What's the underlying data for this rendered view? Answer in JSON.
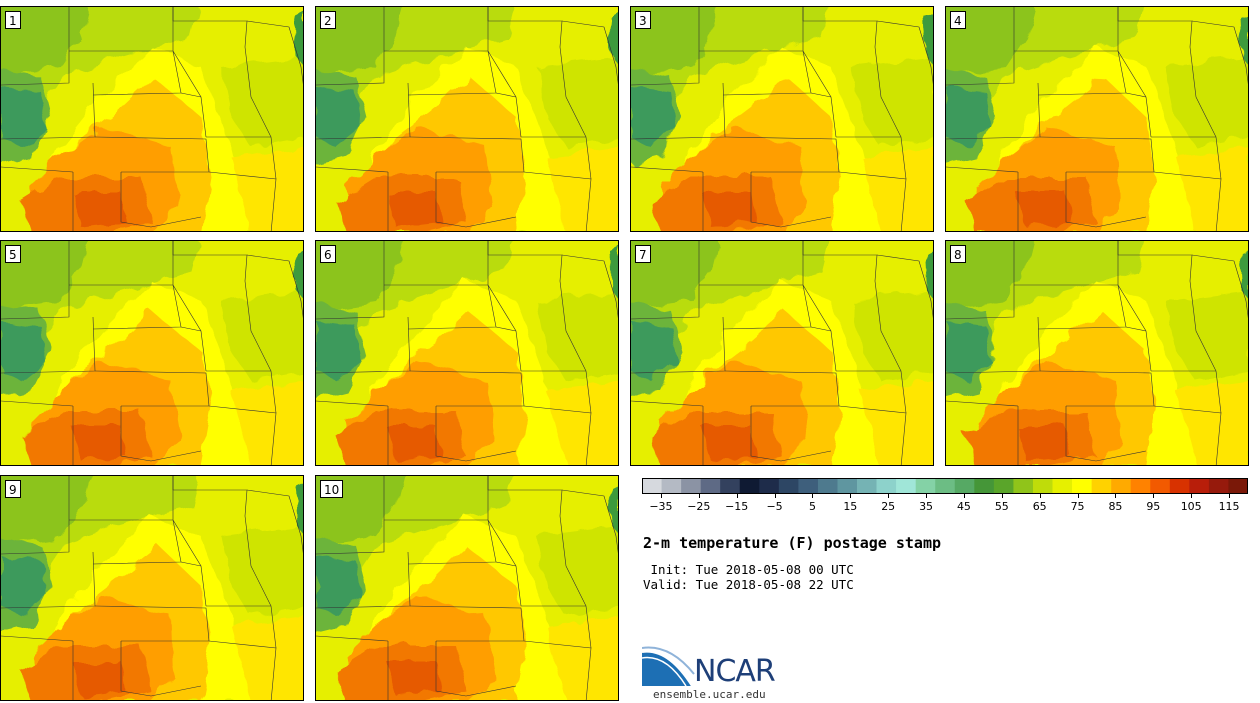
{
  "panels": [
    {
      "label": "1"
    },
    {
      "label": "2"
    },
    {
      "label": "3"
    },
    {
      "label": "4"
    },
    {
      "label": "5"
    },
    {
      "label": "6"
    },
    {
      "label": "7"
    },
    {
      "label": "8"
    },
    {
      "label": "9"
    },
    {
      "label": "10"
    }
  ],
  "colorbar": {
    "colors": [
      "#d6d9de",
      "#b4bac4",
      "#8b93a4",
      "#5e6a85",
      "#33415e",
      "#0f1a33",
      "#1e2c4a",
      "#2d4664",
      "#3e5f7c",
      "#4e7a8e",
      "#5f96a0",
      "#75b3b4",
      "#8dd2cb",
      "#a0e6d8",
      "#84d2a6",
      "#6cbd84",
      "#56a964",
      "#459638",
      "#5aa52a",
      "#90c41a",
      "#bfdc0a",
      "#e6f000",
      "#ffff00",
      "#ffd200",
      "#ffaa00",
      "#ff8200",
      "#f25a00",
      "#d83200",
      "#b81e0a",
      "#961a0c",
      "#7a1808"
    ],
    "tick_values": [
      "−35",
      "−25",
      "−15",
      "−5",
      "5",
      "15",
      "25",
      "35",
      "45",
      "55",
      "65",
      "75",
      "85",
      "95",
      "105",
      "115"
    ],
    "min": -40,
    "max": 120
  },
  "title": "2-m temperature (F) postage stamp",
  "init_text": " Init: Tue 2018-05-08 00 UTC",
  "valid_text": "Valid: Tue 2018-05-08 22 UTC",
  "logo": {
    "name": "NCAR",
    "site": "ensemble.ucar.edu"
  }
}
